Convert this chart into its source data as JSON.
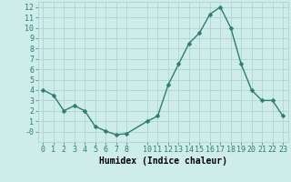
{
  "x": [
    0,
    1,
    2,
    3,
    4,
    5,
    6,
    7,
    8,
    10,
    11,
    12,
    13,
    14,
    15,
    16,
    17,
    18,
    19,
    20,
    21,
    22,
    23
  ],
  "y": [
    4.0,
    3.5,
    2.0,
    2.5,
    2.0,
    0.5,
    0.05,
    -0.3,
    -0.2,
    1.0,
    1.5,
    4.5,
    6.5,
    8.5,
    9.5,
    11.3,
    12.0,
    10.0,
    6.5,
    4.0,
    3.0,
    3.0,
    1.5
  ],
  "line_color": "#2e7d6e",
  "marker_color": "#2e7d6e",
  "bg_color": "#ceecea",
  "grid_color": "#aed4d0",
  "xlabel": "Humidex (Indice chaleur)",
  "xlim": [
    -0.5,
    23.5
  ],
  "ylim": [
    -1.0,
    12.5
  ],
  "ytick_positions": [
    0,
    1,
    2,
    3,
    4,
    5,
    6,
    7,
    8,
    9,
    10,
    11,
    12
  ],
  "ytick_labels": [
    "-0",
    "1",
    "2",
    "3",
    "4",
    "5",
    "6",
    "7",
    "8",
    "9",
    "10",
    "11",
    "12"
  ],
  "xtick_positions": [
    0,
    1,
    2,
    3,
    4,
    5,
    6,
    7,
    8,
    10,
    11,
    12,
    13,
    14,
    15,
    16,
    17,
    18,
    19,
    20,
    21,
    22,
    23
  ],
  "xtick_labels": [
    "0",
    "1",
    "2",
    "3",
    "4",
    "5",
    "6",
    "7",
    "8",
    "10",
    "11",
    "12",
    "13",
    "14",
    "15",
    "16",
    "17",
    "18",
    "19",
    "20",
    "21",
    "22",
    "23"
  ],
  "tick_font_size": 6,
  "label_font_size": 7,
  "marker_size": 2.5,
  "line_width": 1.0
}
